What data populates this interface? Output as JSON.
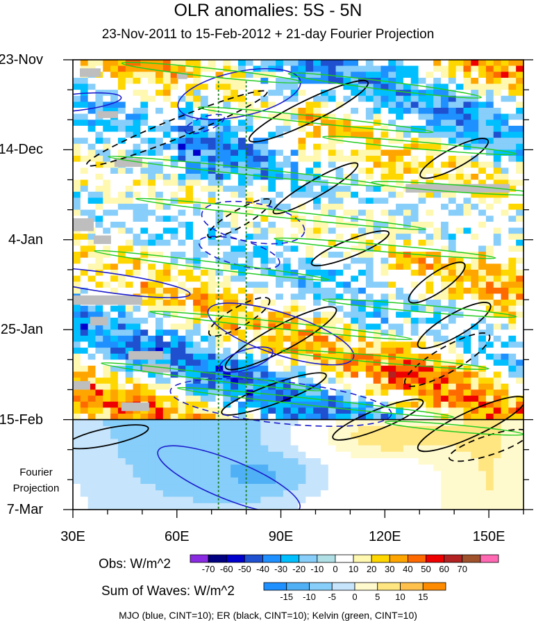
{
  "title": "OLR anomalies: 5S - 5N",
  "subtitle": "23-Nov-2011 to 15-Feb-2012 + 21-day Fourier Projection",
  "chart_data": {
    "type": "heatmap",
    "title": "OLR anomalies: 5S - 5N",
    "subtitle": "23-Nov-2011 to 15-Feb-2012 + 21-day Fourier Projection",
    "x_axis": {
      "range": [
        30,
        160
      ],
      "ticks": [
        30,
        60,
        90,
        120,
        150
      ],
      "tick_labels": [
        "30E",
        "60E",
        "90E",
        "120E",
        "150E"
      ]
    },
    "y_axis": {
      "range_days_after_23Nov": [
        0,
        105
      ],
      "ticks": [
        0,
        21,
        42,
        63,
        84,
        105
      ],
      "tick_labels": [
        "23-Nov",
        "14-Dec",
        "4-Jan",
        "25-Jan",
        "15-Feb",
        "7-Mar"
      ],
      "observation_end_label": "15-Feb",
      "projection_label": "Fourier Projection"
    },
    "reference_lines_lon": [
      72,
      80
    ],
    "obs_legend": {
      "title": "Obs: W/m^2",
      "levels": [
        "-70",
        "-60",
        "-50",
        "-40",
        "-30",
        "-20",
        "-10",
        "0",
        "10",
        "20",
        "30",
        "40",
        "50",
        "60",
        "70"
      ],
      "colors": [
        "#8a2be2",
        "#000080",
        "#0000cd",
        "#1e50d0",
        "#1e90ff",
        "#00bfff",
        "#87cefa",
        "#b0e0e6",
        "#ffffff",
        "#fff8b0",
        "#ffd700",
        "#ffa500",
        "#ff6a00",
        "#ee0000",
        "#b22222",
        "#a0522d",
        "#ff69b4"
      ]
    },
    "waves_legend": {
      "title": "Sum of Waves: W/m^2",
      "levels": [
        "-15",
        "-10",
        "-5",
        "0",
        "5",
        "10",
        "15"
      ],
      "colors": [
        "#1e90ff",
        "#4fb0f5",
        "#87cefa",
        "#c6e4fb",
        "#fffacd",
        "#ffe680",
        "#ffc04c",
        "#ff8c00"
      ]
    },
    "contours": [
      {
        "name": "MJO",
        "color": "#0000cd",
        "cint": 10
      },
      {
        "name": "ER",
        "color": "#000000",
        "cint": 10
      },
      {
        "name": "Kelvin",
        "color": "#00cc00",
        "cint": 10
      }
    ],
    "footer": "MJO (blue, CINT=10); ER (black, CINT=10); Kelvin (green, CINT=10)"
  },
  "colors": {
    "mjo": "#1a1acd",
    "er": "#000000",
    "kelvin": "#22cc22",
    "ref_line": "#1a7a1a",
    "missing": "#bebebe"
  }
}
